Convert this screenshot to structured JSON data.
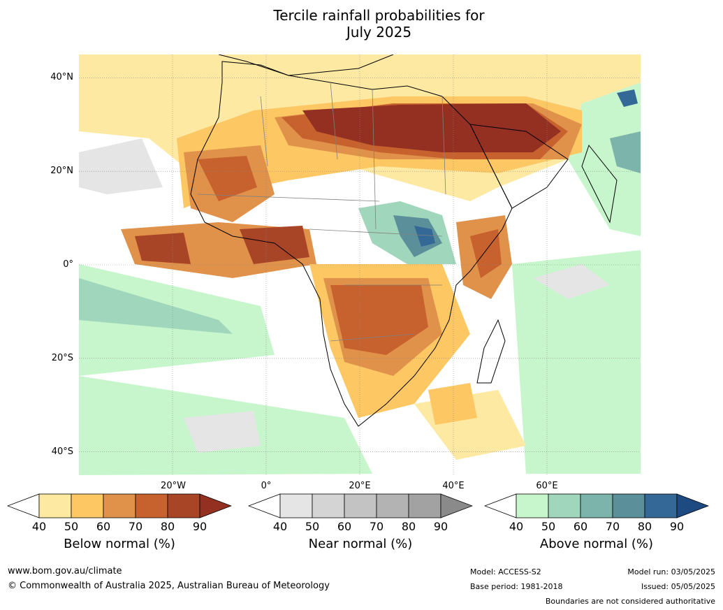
{
  "title": {
    "line1": "Tercile rainfall probabilities for",
    "line2": "July 2025"
  },
  "map": {
    "lat_labels": [
      "40°N",
      "20°N",
      "0°",
      "20°S",
      "40°S"
    ],
    "lon_labels": [
      "20°W",
      "0°",
      "20°E",
      "40°E",
      "60°E"
    ],
    "extent": {
      "lon_min": -40,
      "lon_max": 80,
      "lat_min": -45,
      "lat_max": 45
    },
    "graticule_lon": [
      -20,
      0,
      20,
      40,
      60
    ],
    "graticule_lat": [
      40,
      20,
      0,
      -20,
      -40
    ]
  },
  "legends": [
    {
      "label": "Below normal (%)",
      "ticks": [
        "40",
        "50",
        "60",
        "70",
        "80",
        "90"
      ],
      "colors": [
        "#ffffff",
        "#fde9a2",
        "#fdc764",
        "#e0914a",
        "#c7622f",
        "#a94527",
        "#933022"
      ]
    },
    {
      "label": "Near normal (%)",
      "ticks": [
        "40",
        "50",
        "60",
        "70",
        "80",
        "90"
      ],
      "colors": [
        "#ffffff",
        "#e5e5e5",
        "#d4d4d4",
        "#c3c3c3",
        "#b3b3b3",
        "#a2a2a2",
        "#8a8a8a"
      ]
    },
    {
      "label": "Above normal (%)",
      "ticks": [
        "40",
        "50",
        "60",
        "70",
        "80",
        "90"
      ],
      "colors": [
        "#ffffff",
        "#c7f5cc",
        "#a0d6bc",
        "#7cb3aa",
        "#5b8f9a",
        "#346896",
        "#1d4a80"
      ]
    }
  ],
  "footer": {
    "website": "www.bom.gov.au/climate",
    "copyright": "© Commonwealth of Australia 2025, Australian Bureau of Meteorology",
    "model": "Model: ACCESS-S2",
    "base_period": "Base period: 1981-2018",
    "model_run": "Model run: 03/05/2025",
    "issued": "Issued: 05/05/2025",
    "disclaimer": "Boundaries are not considered authoritative"
  }
}
